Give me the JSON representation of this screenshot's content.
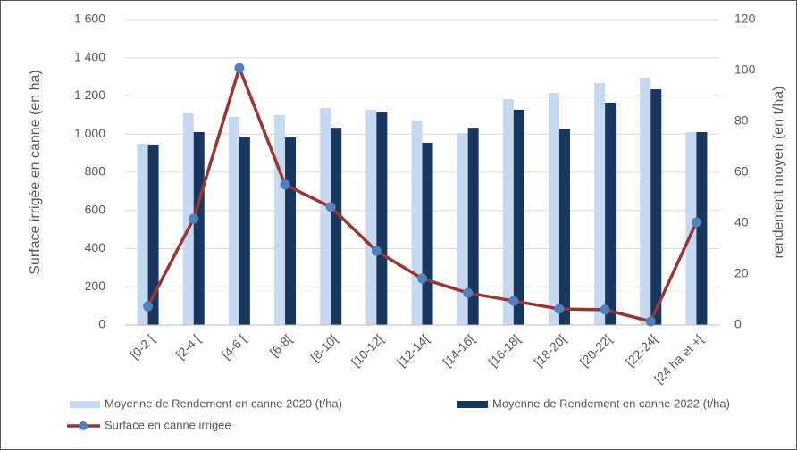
{
  "chart_data": {
    "type": "bar",
    "y_label": "Surface irrigée en canne (en ha)",
    "y2_label": "rendement moyen (en t/ha)",
    "categories": [
      "[0-2 [",
      "[2-4 [",
      "[4-6 [",
      "[6-8[",
      "[8-10[",
      "[10-12[",
      "[12-14[",
      "[14-16[",
      "[16-18[",
      "[18-20[",
      "[20-22[",
      "[22-24[",
      "[24 ha et +["
    ],
    "series": [
      {
        "name": "Moyenne de Rendement en canne 2020 (t/ha)",
        "type": "bar",
        "axis": "y2",
        "color": "#c6d9f0",
        "values": [
          71.2,
          83.2,
          81.8,
          82.5,
          85.3,
          84.6,
          80.4,
          75.4,
          88.8,
          91.2,
          95.1,
          97.2,
          75.8
        ]
      },
      {
        "name": "Moyenne de Rendement en canne 2022 (t/ha)",
        "type": "bar",
        "axis": "y2",
        "color": "#17375e",
        "values": [
          70.9,
          75.8,
          74.0,
          73.7,
          77.5,
          83.5,
          71.6,
          77.5,
          84.6,
          77.2,
          87.4,
          92.6,
          75.8
        ]
      },
      {
        "name": "Surface en canne irrigee",
        "type": "line",
        "axis": "y",
        "color": "#953735",
        "marker_color": "#4f81bd",
        "values": [
          98,
          557,
          1347,
          735,
          618,
          388,
          243,
          168,
          126,
          84,
          80,
          19,
          538
        ]
      }
    ],
    "ylim": [
      0,
      1600
    ],
    "yticks": [
      0,
      200,
      400,
      600,
      800,
      {
        "value": 1000,
        "label": "1 000"
      },
      {
        "value": 1200,
        "label": "1 200"
      },
      {
        "value": 1400,
        "label": "1 400"
      },
      {
        "value": 1600,
        "label": "1 600"
      }
    ],
    "y2lim": [
      0,
      120
    ],
    "y2ticks": [
      0,
      20,
      40,
      60,
      80,
      100,
      120
    ],
    "grid": true,
    "legend": "bottom"
  }
}
